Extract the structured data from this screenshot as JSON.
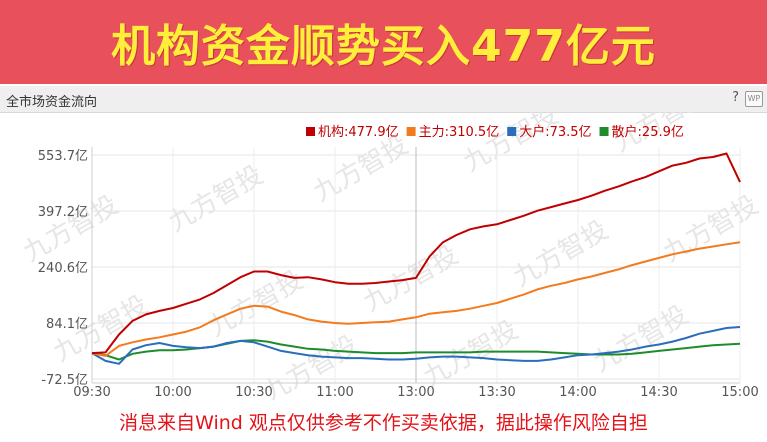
{
  "banner": {
    "title": "机构资金顺势买入477亿元"
  },
  "panel": {
    "title": "全市场资金流向",
    "help": "?",
    "wp": "WP"
  },
  "watermark": "九方智投",
  "footer": {
    "text": "消息来自Wind  观点仅供参考不作买卖依据，据此操作风险自担"
  },
  "chart_data": {
    "type": "line",
    "title": "",
    "xlabel": "",
    "ylabel": "",
    "y_ticks": [
      "553.7亿",
      "397.2亿",
      "240.6亿",
      "84.1亿",
      "-72.5亿"
    ],
    "y_tick_values": [
      553.7,
      397.2,
      240.6,
      84.1,
      -72.5
    ],
    "x_ticks": [
      "09:30",
      "10:00",
      "10:30",
      "11:00",
      "13:00",
      "13:30",
      "14:00",
      "14:30",
      "15:00"
    ],
    "ylim": [
      -72.5,
      553.7
    ],
    "grid": true,
    "legend_position": "top-right",
    "x": [
      "09:30",
      "09:35",
      "09:40",
      "09:45",
      "09:50",
      "09:55",
      "10:00",
      "10:05",
      "10:10",
      "10:15",
      "10:20",
      "10:25",
      "10:30",
      "10:35",
      "10:40",
      "10:45",
      "10:50",
      "10:55",
      "11:00",
      "11:05",
      "11:10",
      "11:15",
      "11:20",
      "11:25",
      "13:00",
      "13:05",
      "13:10",
      "13:15",
      "13:20",
      "13:25",
      "13:30",
      "13:35",
      "13:40",
      "13:45",
      "13:50",
      "13:55",
      "14:00",
      "14:05",
      "14:10",
      "14:15",
      "14:20",
      "14:25",
      "14:30",
      "14:35",
      "14:40",
      "14:45",
      "14:50",
      "14:55",
      "15:00"
    ],
    "series": [
      {
        "name": "机构",
        "label": "机构:477.9亿",
        "color": "#c00000",
        "values": [
          0,
          2,
          52,
          90,
          108,
          118,
          126,
          138,
          150,
          168,
          190,
          212,
          228,
          228,
          218,
          210,
          212,
          206,
          198,
          194,
          194,
          196,
          200,
          204,
          210,
          270,
          310,
          330,
          346,
          354,
          360,
          372,
          384,
          398,
          408,
          418,
          428,
          440,
          454,
          466,
          480,
          492,
          508,
          524,
          532,
          544,
          548,
          558,
          478
        ]
      },
      {
        "name": "主力",
        "label": "主力:310.5亿",
        "color": "#f37b1d",
        "values": [
          0,
          -8,
          20,
          30,
          38,
          44,
          52,
          60,
          72,
          92,
          108,
          124,
          132,
          130,
          116,
          106,
          94,
          88,
          84,
          82,
          84,
          86,
          88,
          94,
          100,
          110,
          114,
          118,
          124,
          132,
          140,
          152,
          164,
          178,
          188,
          196,
          206,
          214,
          224,
          234,
          246,
          256,
          266,
          276,
          284,
          292,
          298,
          304,
          310
        ]
      },
      {
        "name": "大户",
        "label": "大户:73.5亿",
        "color": "#2a6ebb",
        "values": [
          0,
          -22,
          -30,
          10,
          22,
          28,
          20,
          16,
          14,
          18,
          28,
          34,
          30,
          18,
          6,
          0,
          -6,
          -10,
          -12,
          -14,
          -14,
          -16,
          -18,
          -18,
          -16,
          -12,
          -10,
          -10,
          -12,
          -14,
          -18,
          -20,
          -22,
          -22,
          -18,
          -12,
          -6,
          -4,
          0,
          4,
          10,
          18,
          24,
          32,
          42,
          54,
          62,
          70,
          73
        ]
      },
      {
        "name": "散户",
        "label": "散户:25.9亿",
        "color": "#1e8c2b",
        "values": [
          0,
          -6,
          -18,
          -2,
          4,
          8,
          8,
          10,
          14,
          18,
          26,
          34,
          36,
          32,
          24,
          18,
          12,
          10,
          6,
          4,
          2,
          0,
          0,
          0,
          2,
          2,
          2,
          2,
          2,
          4,
          4,
          4,
          4,
          4,
          2,
          0,
          -2,
          -4,
          -4,
          -4,
          -2,
          2,
          6,
          10,
          14,
          18,
          22,
          24,
          26
        ]
      }
    ]
  }
}
